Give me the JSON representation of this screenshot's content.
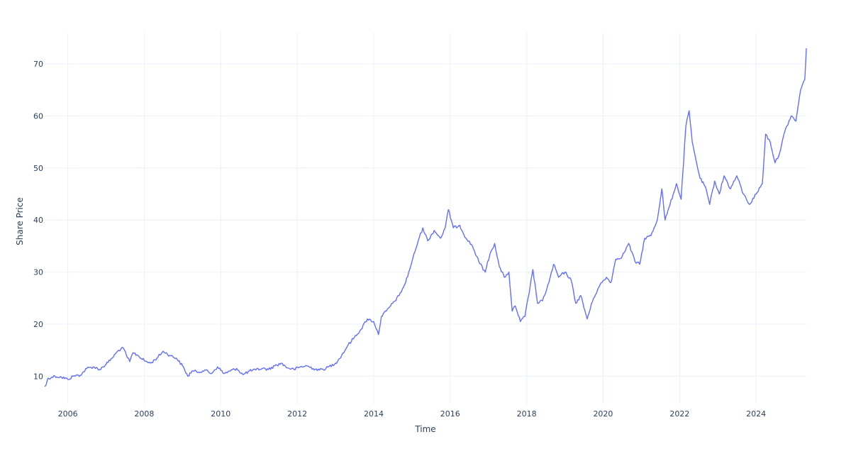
{
  "chart_data": {
    "type": "line",
    "xlabel": "Time",
    "ylabel": "Share Price",
    "x_tick_labels": [
      "2006",
      "2008",
      "2010",
      "2012",
      "2014",
      "2016",
      "2018",
      "2020",
      "2022",
      "2024"
    ],
    "y_tick_labels": [
      "10",
      "20",
      "30",
      "40",
      "50",
      "60",
      "70"
    ],
    "xlim": [
      "2005-05-25",
      "2025-04-25"
    ],
    "ylim": [
      4.6,
      76
    ],
    "grid": true,
    "legend": "none",
    "series": [
      {
        "color": "#636efa",
        "points": [
          [
            "2005-05-25",
            8.0
          ],
          [
            "2005-06-10",
            8.5
          ],
          [
            "2005-06-25",
            9.6
          ],
          [
            "2005-08-01",
            9.8
          ],
          [
            "2005-09-01",
            10.0
          ],
          [
            "2005-11-01",
            9.8
          ],
          [
            "2006-01-01",
            9.4
          ],
          [
            "2006-03-01",
            10.1
          ],
          [
            "2006-05-01",
            10.2
          ],
          [
            "2006-07-01",
            11.5
          ],
          [
            "2006-09-01",
            11.8
          ],
          [
            "2006-11-01",
            11.3
          ],
          [
            "2007-01-01",
            12.3
          ],
          [
            "2007-03-01",
            13.5
          ],
          [
            "2007-05-01",
            15.0
          ],
          [
            "2007-06-15",
            15.4
          ],
          [
            "2007-07-15",
            14.0
          ],
          [
            "2007-08-15",
            12.8
          ],
          [
            "2007-09-15",
            14.5
          ],
          [
            "2007-11-01",
            14.0
          ],
          [
            "2008-01-01",
            13.0
          ],
          [
            "2008-03-01",
            12.5
          ],
          [
            "2008-05-01",
            13.5
          ],
          [
            "2008-07-01",
            14.8
          ],
          [
            "2008-09-01",
            14.0
          ],
          [
            "2008-11-01",
            13.5
          ],
          [
            "2009-01-01",
            12.0
          ],
          [
            "2009-02-20",
            10.0
          ],
          [
            "2009-04-01",
            11.0
          ],
          [
            "2009-06-01",
            10.8
          ],
          [
            "2009-08-01",
            11.2
          ],
          [
            "2009-10-01",
            10.5
          ],
          [
            "2009-12-01",
            11.8
          ],
          [
            "2010-02-01",
            10.5
          ],
          [
            "2010-04-01",
            11.0
          ],
          [
            "2010-06-01",
            11.5
          ],
          [
            "2010-08-01",
            10.3
          ],
          [
            "2010-10-01",
            11.0
          ],
          [
            "2010-12-01",
            11.2
          ],
          [
            "2011-02-01",
            11.5
          ],
          [
            "2011-04-01",
            11.3
          ],
          [
            "2011-06-01",
            12.0
          ],
          [
            "2011-08-01",
            12.5
          ],
          [
            "2011-10-01",
            11.6
          ],
          [
            "2011-12-01",
            11.3
          ],
          [
            "2012-02-01",
            11.8
          ],
          [
            "2012-04-01",
            12.0
          ],
          [
            "2012-06-01",
            11.5
          ],
          [
            "2012-08-01",
            11.2
          ],
          [
            "2012-10-01",
            11.5
          ],
          [
            "2013-01-01",
            12.5
          ],
          [
            "2013-03-01",
            14.0
          ],
          [
            "2013-05-01",
            16.0
          ],
          [
            "2013-07-01",
            17.5
          ],
          [
            "2013-09-01",
            19.0
          ],
          [
            "2013-11-01",
            21.0
          ],
          [
            "2014-01-01",
            20.5
          ],
          [
            "2014-02-15",
            18.0
          ],
          [
            "2014-03-15",
            21.5
          ],
          [
            "2014-05-01",
            22.5
          ],
          [
            "2014-07-01",
            24.0
          ],
          [
            "2014-09-01",
            25.5
          ],
          [
            "2014-11-01",
            28.0
          ],
          [
            "2015-01-01",
            32.0
          ],
          [
            "2015-03-01",
            36.0
          ],
          [
            "2015-04-15",
            38.5
          ],
          [
            "2015-06-01",
            36.0
          ],
          [
            "2015-08-01",
            38.0
          ],
          [
            "2015-10-01",
            36.5
          ],
          [
            "2015-11-15",
            38.5
          ],
          [
            "2015-12-15",
            42.0
          ],
          [
            "2016-02-01",
            38.5
          ],
          [
            "2016-04-01",
            39.0
          ],
          [
            "2016-06-01",
            36.5
          ],
          [
            "2016-08-01",
            35.0
          ],
          [
            "2016-10-01",
            32.0
          ],
          [
            "2016-12-01",
            30.0
          ],
          [
            "2017-01-15",
            33.5
          ],
          [
            "2017-03-01",
            35.5
          ],
          [
            "2017-04-15",
            31.0
          ],
          [
            "2017-06-01",
            29.0
          ],
          [
            "2017-07-15",
            30.0
          ],
          [
            "2017-08-15",
            22.5
          ],
          [
            "2017-09-15",
            23.5
          ],
          [
            "2017-11-01",
            20.5
          ],
          [
            "2017-12-15",
            21.5
          ],
          [
            "2018-02-01",
            27.0
          ],
          [
            "2018-03-01",
            30.5
          ],
          [
            "2018-04-15",
            24.0
          ],
          [
            "2018-06-01",
            24.5
          ],
          [
            "2018-08-01",
            28.0
          ],
          [
            "2018-09-15",
            31.5
          ],
          [
            "2018-11-01",
            29.0
          ],
          [
            "2019-01-01",
            30.0
          ],
          [
            "2019-03-01",
            28.5
          ],
          [
            "2019-04-15",
            24.0
          ],
          [
            "2019-06-01",
            25.5
          ],
          [
            "2019-08-01",
            21.0
          ],
          [
            "2019-10-01",
            25.0
          ],
          [
            "2019-12-01",
            27.5
          ],
          [
            "2020-02-01",
            29.0
          ],
          [
            "2020-03-15",
            28.0
          ],
          [
            "2020-05-01",
            32.5
          ],
          [
            "2020-07-01",
            33.0
          ],
          [
            "2020-09-01",
            35.5
          ],
          [
            "2020-11-01",
            32.0
          ],
          [
            "2020-12-15",
            31.5
          ],
          [
            "2021-02-01",
            36.5
          ],
          [
            "2021-04-01",
            37.0
          ],
          [
            "2021-06-01",
            40.0
          ],
          [
            "2021-07-15",
            46.0
          ],
          [
            "2021-08-15",
            40.0
          ],
          [
            "2021-10-01",
            43.0
          ],
          [
            "2021-12-01",
            47.0
          ],
          [
            "2022-01-15",
            44.0
          ],
          [
            "2022-03-01",
            58.0
          ],
          [
            "2022-04-01",
            61.0
          ],
          [
            "2022-05-01",
            55.0
          ],
          [
            "2022-06-01",
            52.0
          ],
          [
            "2022-07-15",
            48.0
          ],
          [
            "2022-09-01",
            46.5
          ],
          [
            "2022-10-15",
            43.0
          ],
          [
            "2022-12-01",
            47.5
          ],
          [
            "2023-01-15",
            45.0
          ],
          [
            "2023-03-01",
            48.5
          ],
          [
            "2023-05-01",
            46.0
          ],
          [
            "2023-07-01",
            48.5
          ],
          [
            "2023-09-01",
            45.0
          ],
          [
            "2023-11-01",
            43.0
          ],
          [
            "2024-01-01",
            45.0
          ],
          [
            "2024-03-01",
            47.0
          ],
          [
            "2024-04-01",
            56.5
          ],
          [
            "2024-05-15",
            55.0
          ],
          [
            "2024-07-01",
            51.0
          ],
          [
            "2024-08-15",
            53.0
          ],
          [
            "2024-10-01",
            57.0
          ],
          [
            "2024-12-01",
            60.0
          ],
          [
            "2025-01-15",
            59.0
          ],
          [
            "2025-03-01",
            65.0
          ],
          [
            "2025-04-10",
            67.0
          ],
          [
            "2025-04-25",
            73.0
          ]
        ]
      }
    ]
  }
}
